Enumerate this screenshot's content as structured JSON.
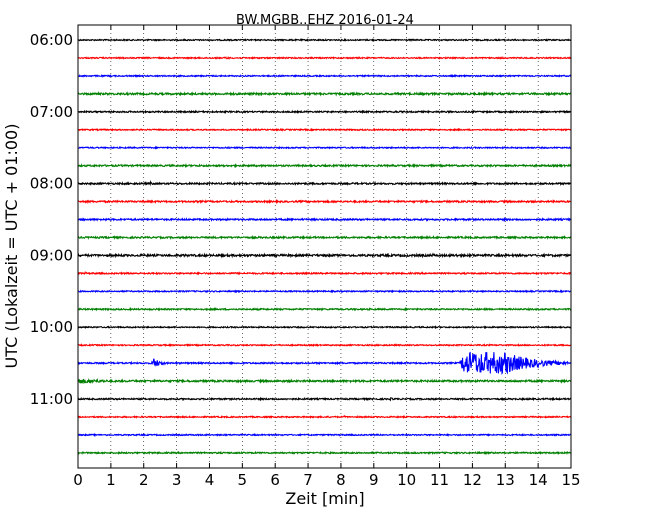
{
  "chart_data": {
    "type": "line",
    "title": "BW.MGBB..EHZ 2016-01-24",
    "xlabel": "Zeit  [min]",
    "ylabel": "UTC (Lokalzeit = UTC + 01:00)",
    "xlim": [
      0,
      15
    ],
    "xticks": [
      0,
      1,
      2,
      3,
      4,
      5,
      6,
      7,
      8,
      9,
      10,
      11,
      12,
      13,
      14,
      15
    ],
    "grid": "vertical dotted",
    "colors": {
      "black": "#000000",
      "red": "#ff0000",
      "blue": "#0000ff",
      "green": "#008000"
    },
    "hour_labels": [
      {
        "label": "06:00",
        "trace_index": 0
      },
      {
        "label": "07:00",
        "trace_index": 4
      },
      {
        "label": "08:00",
        "trace_index": 8
      },
      {
        "label": "09:00",
        "trace_index": 12
      },
      {
        "label": "10:00",
        "trace_index": 16
      },
      {
        "label": "11:00",
        "trace_index": 20
      }
    ],
    "traces": [
      {
        "start": "06:00",
        "color": "black",
        "noise": 0.6,
        "events": [
          {
            "t": 1.7,
            "amp": 1.2,
            "dur": 0.15
          }
        ]
      },
      {
        "start": "06:15",
        "color": "red",
        "noise": 0.6,
        "events": [
          {
            "t": 4.5,
            "amp": 1.5,
            "dur": 0.2
          }
        ]
      },
      {
        "start": "06:30",
        "color": "blue",
        "noise": 0.6,
        "events": []
      },
      {
        "start": "06:45",
        "color": "green",
        "noise": 0.9,
        "events": [
          {
            "t": 0.6,
            "amp": 1.2,
            "dur": 0.3
          }
        ]
      },
      {
        "start": "07:00",
        "color": "black",
        "noise": 0.7,
        "events": [
          {
            "t": 9.6,
            "amp": 1.4,
            "dur": 0.15
          }
        ]
      },
      {
        "start": "07:15",
        "color": "red",
        "noise": 0.6,
        "events": []
      },
      {
        "start": "07:30",
        "color": "blue",
        "noise": 0.6,
        "events": []
      },
      {
        "start": "07:45",
        "color": "green",
        "noise": 0.8,
        "events": []
      },
      {
        "start": "08:00",
        "color": "black",
        "noise": 0.8,
        "events": [
          {
            "t": 2.2,
            "amp": 1.8,
            "dur": 0.2
          }
        ]
      },
      {
        "start": "08:15",
        "color": "red",
        "noise": 0.8,
        "events": [
          {
            "t": 4.0,
            "amp": 1.3,
            "dur": 0.1
          },
          {
            "t": 4.6,
            "amp": 1.3,
            "dur": 0.1
          }
        ]
      },
      {
        "start": "08:30",
        "color": "blue",
        "noise": 0.8,
        "events": [
          {
            "t": 0.2,
            "amp": 1.3,
            "dur": 0.2
          }
        ]
      },
      {
        "start": "08:45",
        "color": "green",
        "noise": 0.8,
        "events": []
      },
      {
        "start": "09:00",
        "color": "black",
        "noise": 1.0,
        "events": [
          {
            "t": 3.2,
            "amp": 2.0,
            "dur": 0.1
          },
          {
            "t": 9.8,
            "amp": 1.8,
            "dur": 0.1
          },
          {
            "t": 10.8,
            "amp": 1.6,
            "dur": 0.1
          },
          {
            "t": 11.5,
            "amp": 2.2,
            "dur": 0.12
          }
        ]
      },
      {
        "start": "09:15",
        "color": "red",
        "noise": 0.7,
        "events": [
          {
            "t": 0.2,
            "amp": 1.4,
            "dur": 0.15
          }
        ]
      },
      {
        "start": "09:30",
        "color": "blue",
        "noise": 0.6,
        "events": []
      },
      {
        "start": "09:45",
        "color": "green",
        "noise": 0.7,
        "events": []
      },
      {
        "start": "10:00",
        "color": "black",
        "noise": 0.6,
        "events": []
      },
      {
        "start": "10:15",
        "color": "red",
        "noise": 0.6,
        "events": []
      },
      {
        "start": "10:30",
        "color": "blue",
        "noise": 0.7,
        "events": [
          {
            "t": 2.3,
            "amp": 5.0,
            "dur": 0.35
          },
          {
            "t": 11.6,
            "amp": 11,
            "dur": 3.3,
            "big": true
          }
        ]
      },
      {
        "start": "10:45",
        "color": "green",
        "noise": 0.9,
        "events": [
          {
            "t": 0.0,
            "amp": 2.6,
            "dur": 1.6
          }
        ]
      },
      {
        "start": "11:00",
        "color": "black",
        "noise": 0.7,
        "events": [
          {
            "t": 9.5,
            "amp": 1.4,
            "dur": 0.3
          }
        ]
      },
      {
        "start": "11:15",
        "color": "red",
        "noise": 0.6,
        "events": [
          {
            "t": 8.1,
            "amp": 1.2,
            "dur": 0.1
          }
        ]
      },
      {
        "start": "11:30",
        "color": "blue",
        "noise": 0.6,
        "events": []
      },
      {
        "start": "11:45",
        "color": "green",
        "noise": 0.7,
        "events": []
      }
    ]
  }
}
